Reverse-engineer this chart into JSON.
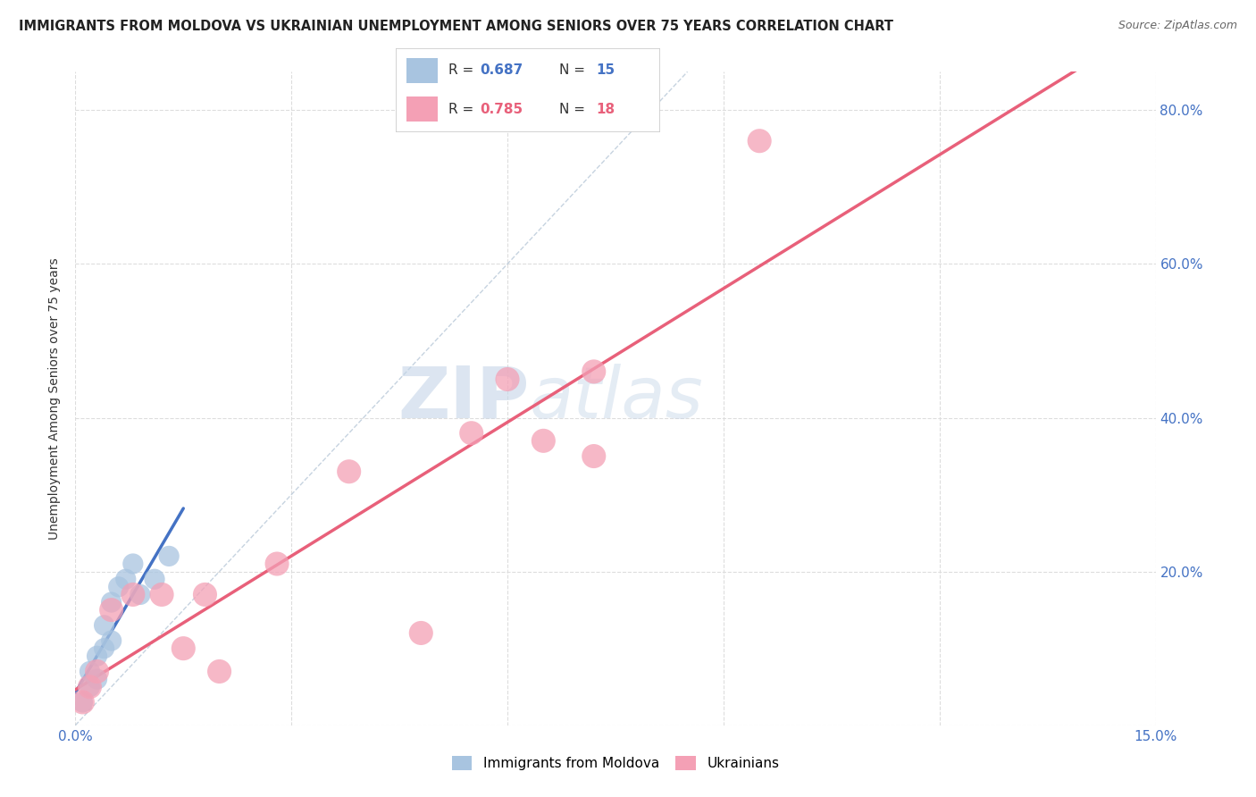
{
  "title": "IMMIGRANTS FROM MOLDOVA VS UKRAINIAN UNEMPLOYMENT AMONG SENIORS OVER 75 YEARS CORRELATION CHART",
  "source": "Source: ZipAtlas.com",
  "ylabel": "Unemployment Among Seniors over 75 years",
  "xlim": [
    0,
    0.15
  ],
  "ylim": [
    0,
    0.85
  ],
  "legend_r1": "0.687",
  "legend_n1": "15",
  "legend_r2": "0.785",
  "legend_n2": "18",
  "blue_color": "#a8c4e0",
  "blue_line_color": "#4472c4",
  "pink_color": "#f4a0b5",
  "pink_line_color": "#e8607a",
  "blue_scatter_x": [
    0.001,
    0.002,
    0.002,
    0.003,
    0.003,
    0.004,
    0.004,
    0.005,
    0.005,
    0.006,
    0.007,
    0.008,
    0.009,
    0.011,
    0.013
  ],
  "blue_scatter_y": [
    0.03,
    0.05,
    0.07,
    0.06,
    0.09,
    0.1,
    0.13,
    0.11,
    0.16,
    0.18,
    0.19,
    0.21,
    0.17,
    0.19,
    0.22
  ],
  "pink_scatter_x": [
    0.001,
    0.002,
    0.003,
    0.005,
    0.008,
    0.012,
    0.015,
    0.018,
    0.02,
    0.028,
    0.038,
    0.048,
    0.055,
    0.06,
    0.065,
    0.072,
    0.072,
    0.095
  ],
  "pink_scatter_y": [
    0.03,
    0.05,
    0.07,
    0.15,
    0.17,
    0.17,
    0.1,
    0.17,
    0.07,
    0.21,
    0.33,
    0.12,
    0.38,
    0.45,
    0.37,
    0.46,
    0.35,
    0.76
  ],
  "watermark_zip": "ZIP",
  "watermark_atlas": "atlas",
  "background_color": "#ffffff",
  "grid_color": "#dddddd",
  "axis_color": "#4472c4",
  "title_color": "#222222",
  "source_color": "#666666"
}
